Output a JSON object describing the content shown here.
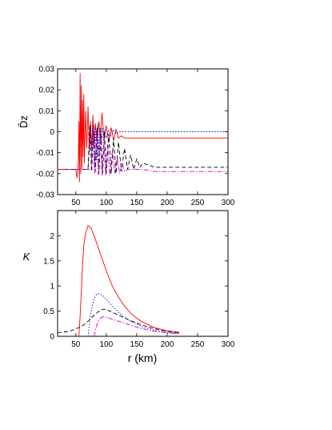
{
  "chart_data": [
    {
      "type": "line",
      "ylabel": "D̄z",
      "xlim": [
        20,
        300
      ],
      "ylim": [
        -0.03,
        0.03
      ],
      "xticks": [
        "50",
        "100",
        "150",
        "200",
        "250",
        "300"
      ],
      "yticks": [
        "0.03",
        "0.02",
        "0.01",
        "0",
        "-0.01",
        "-0.02",
        "-0.03"
      ],
      "grid": false,
      "series": [
        {
          "color": "#ff0000",
          "style": "solid",
          "x": [
            20,
            50,
            52,
            54,
            55,
            56,
            57,
            58,
            59,
            60,
            61,
            62,
            63,
            64,
            66,
            68,
            70,
            72,
            74,
            76,
            78,
            80,
            82,
            85,
            88,
            90,
            93,
            96,
            100,
            104,
            108,
            112,
            116,
            120,
            125,
            130,
            140,
            150,
            160,
            200,
            300
          ],
          "y": [
            -0.018,
            -0.018,
            -0.022,
            -0.015,
            0.005,
            -0.024,
            0.028,
            -0.02,
            0.022,
            -0.018,
            0.015,
            -0.012,
            0.018,
            -0.015,
            0.01,
            -0.008,
            0.012,
            -0.01,
            0.005,
            -0.008,
            0.008,
            -0.006,
            0.004,
            -0.004,
            0.005,
            -0.005,
            0.009,
            -0.003,
            0.003,
            -0.005,
            0.002,
            -0.004,
            0.001,
            -0.003,
            -0.002,
            -0.003,
            -0.003,
            -0.003,
            -0.003,
            -0.003,
            -0.003
          ]
        },
        {
          "color": "#0000cc",
          "style": "dotted",
          "x": [
            20,
            70,
            72,
            74,
            76,
            78,
            80,
            82,
            84,
            86,
            88,
            90,
            92,
            94,
            96,
            98,
            100,
            104,
            108,
            112,
            116,
            120,
            125,
            130,
            300
          ],
          "y": [
            -0.018,
            -0.018,
            -0.01,
            0.004,
            -0.015,
            0.003,
            -0.016,
            0.002,
            -0.014,
            0.004,
            -0.01,
            0.002,
            -0.006,
            0.002,
            -0.004,
            0.001,
            -0.003,
            0.001,
            -0.002,
            0.001,
            -0.001,
            0.0,
            0.0,
            0.0,
            0.0
          ]
        },
        {
          "color": "#000000",
          "style": "dashed",
          "x": [
            20,
            70,
            73,
            76,
            79,
            82,
            85,
            88,
            91,
            94,
            97,
            100,
            104,
            108,
            112,
            116,
            120,
            125,
            130,
            135,
            140,
            145,
            150,
            155,
            160,
            170,
            180,
            200,
            220,
            250,
            300
          ],
          "y": [
            -0.018,
            -0.018,
            0.003,
            -0.019,
            0.003,
            -0.019,
            0.002,
            -0.02,
            0.001,
            -0.02,
            0.0,
            -0.02,
            -0.001,
            -0.02,
            -0.003,
            -0.02,
            -0.005,
            -0.019,
            -0.008,
            -0.018,
            -0.011,
            -0.018,
            -0.013,
            -0.017,
            -0.015,
            -0.016,
            -0.017,
            -0.017,
            -0.017,
            -0.017,
            -0.017
          ]
        },
        {
          "color": "#cc00cc",
          "style": "dashdot",
          "x": [
            20,
            75,
            78,
            81,
            84,
            87,
            90,
            93,
            96,
            99,
            102,
            106,
            110,
            114,
            118,
            122,
            126,
            130,
            135,
            140,
            150,
            160,
            180,
            200,
            300
          ],
          "y": [
            -0.018,
            -0.018,
            0.002,
            -0.02,
            0.0,
            -0.021,
            -0.002,
            -0.021,
            -0.004,
            -0.021,
            -0.006,
            -0.021,
            -0.009,
            -0.02,
            -0.012,
            -0.02,
            -0.015,
            -0.019,
            -0.018,
            -0.018,
            -0.018,
            -0.018,
            -0.019,
            -0.019,
            -0.019
          ]
        }
      ]
    },
    {
      "type": "line",
      "xlabel": "r (km)",
      "ylabel": "K",
      "xlim": [
        20,
        300
      ],
      "ylim": [
        0,
        2.5
      ],
      "xticks": [
        "50",
        "100",
        "150",
        "200",
        "250",
        "300"
      ],
      "yticks": [
        "2",
        "1.5",
        "1",
        "0.5",
        "0"
      ],
      "grid": false,
      "series": [
        {
          "color": "#ff0000",
          "style": "solid",
          "x": [
            55,
            57,
            59,
            61,
            63,
            66,
            70,
            75,
            80,
            90,
            100,
            110,
            120,
            130,
            140,
            150,
            160,
            180,
            200,
            220
          ],
          "y": [
            0.0,
            0.4,
            0.9,
            1.4,
            1.8,
            2.05,
            2.2,
            2.15,
            2.0,
            1.65,
            1.3,
            1.0,
            0.78,
            0.6,
            0.46,
            0.36,
            0.28,
            0.17,
            0.11,
            0.08
          ]
        },
        {
          "color": "#0000cc",
          "style": "dotted",
          "x": [
            70,
            72,
            75,
            80,
            85,
            90,
            95,
            100,
            110,
            120,
            130,
            140,
            150,
            160,
            180,
            200,
            220
          ],
          "y": [
            0.0,
            0.2,
            0.5,
            0.76,
            0.85,
            0.84,
            0.8,
            0.74,
            0.6,
            0.48,
            0.38,
            0.3,
            0.24,
            0.19,
            0.12,
            0.08,
            0.06
          ]
        },
        {
          "color": "#000000",
          "style": "dashed",
          "x": [
            20,
            40,
            60,
            70,
            80,
            90,
            95,
            100,
            110,
            120,
            140,
            160,
            180,
            200,
            220
          ],
          "y": [
            0.07,
            0.1,
            0.2,
            0.3,
            0.42,
            0.52,
            0.54,
            0.53,
            0.48,
            0.42,
            0.31,
            0.22,
            0.15,
            0.1,
            0.07
          ]
        },
        {
          "color": "#cc00cc",
          "style": "dashdot",
          "x": [
            80,
            82,
            85,
            90,
            95,
            100,
            110,
            120,
            140,
            160,
            180,
            200,
            220
          ],
          "y": [
            0.0,
            0.12,
            0.25,
            0.36,
            0.39,
            0.38,
            0.34,
            0.3,
            0.22,
            0.15,
            0.1,
            0.07,
            0.05
          ]
        }
      ]
    }
  ]
}
